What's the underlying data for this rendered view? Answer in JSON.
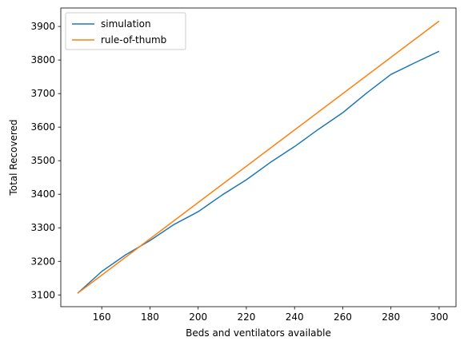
{
  "chart_data": {
    "type": "line",
    "xlabel": "Beds and ventilators available",
    "ylabel": "Total Recovered",
    "xlim": [
      143,
      307
    ],
    "ylim": [
      3065,
      3955
    ],
    "xticks": [
      160,
      180,
      200,
      220,
      240,
      260,
      280,
      300
    ],
    "yticks": [
      3100,
      3200,
      3300,
      3400,
      3500,
      3600,
      3700,
      3800,
      3900
    ],
    "grid": false,
    "legend_position": "top-left",
    "series": [
      {
        "name": "simulation",
        "color": "#1f77b4",
        "x": [
          150,
          160,
          170,
          180,
          190,
          200,
          210,
          220,
          230,
          240,
          250,
          260,
          270,
          280,
          290,
          300
        ],
        "y": [
          3105,
          3170,
          3220,
          3262,
          3310,
          3348,
          3398,
          3443,
          3495,
          3542,
          3594,
          3643,
          3702,
          3757,
          3792,
          3826
        ]
      },
      {
        "name": "rule-of-thumb",
        "color": "#ff7f0e",
        "x": [
          150,
          300
        ],
        "y": [
          3105,
          3916
        ]
      }
    ]
  }
}
